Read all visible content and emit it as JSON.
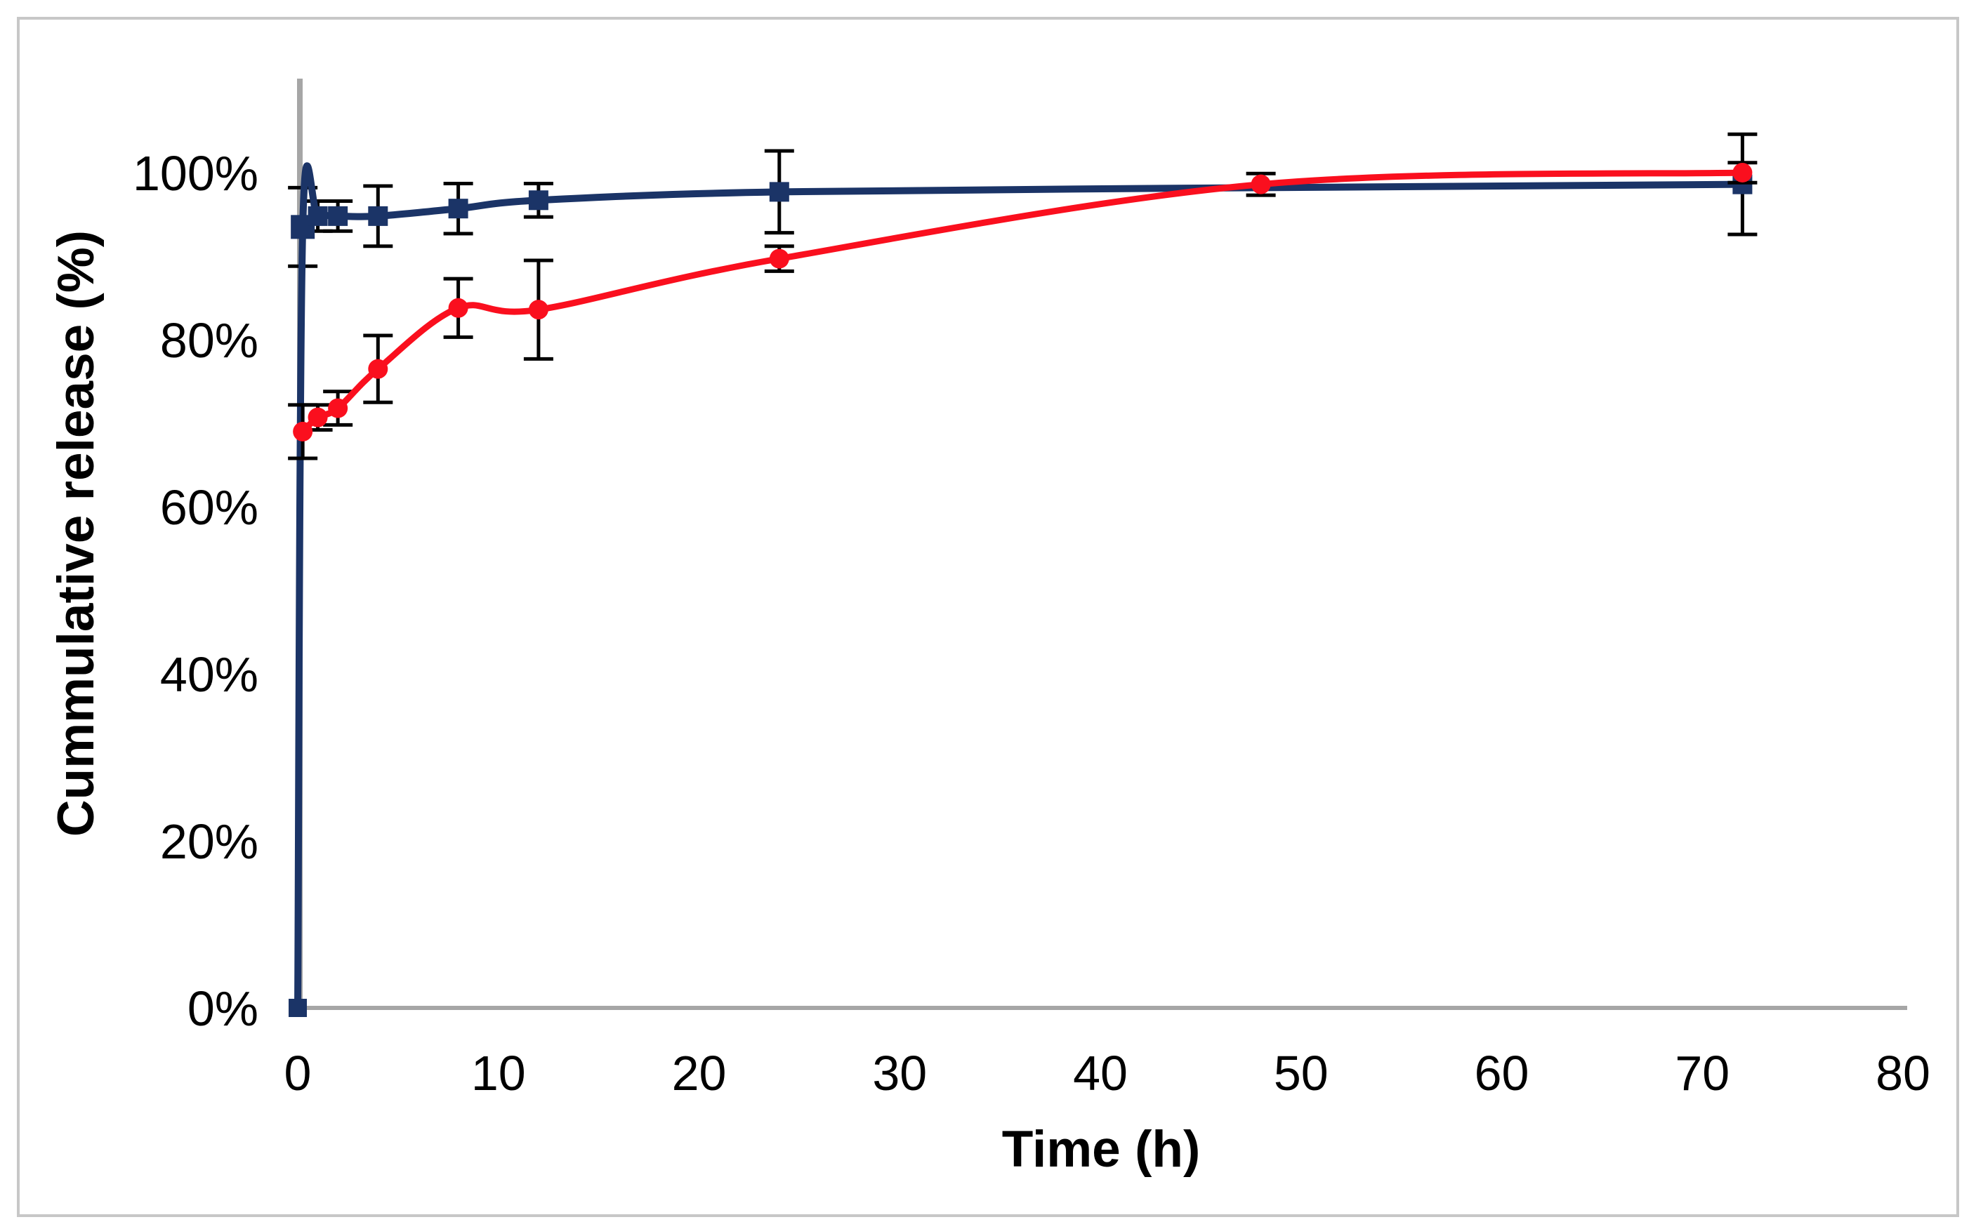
{
  "figure": {
    "background": "#ffffff",
    "border_color": "#c7c7c7"
  },
  "chart_data": {
    "type": "line",
    "title": "",
    "xlabel": "Time (h)",
    "ylabel": "Cummulative release (%)",
    "xlim": [
      0,
      80
    ],
    "ylim": [
      0,
      100
    ],
    "x_ticks": [
      0,
      10,
      20,
      30,
      40,
      50,
      60,
      70,
      80
    ],
    "x_tick_labels": [
      "0",
      "10",
      "20",
      "30",
      "40",
      "50",
      "60",
      "70",
      "80"
    ],
    "y_ticks": [
      0,
      20,
      40,
      60,
      80,
      100
    ],
    "y_tick_labels": [
      "0%",
      "20%",
      "40%",
      "60%",
      "80%",
      "100%"
    ],
    "grid": false,
    "legend_position": "none",
    "axis_color": "#a6a6a6",
    "error_bar_color": "#000000",
    "series": [
      {
        "name": "blue-squares",
        "marker": "square",
        "color": "#1b3467",
        "line_width": 10,
        "points": [
          {
            "x": 0,
            "y": 0,
            "err": 0,
            "marker": true,
            "size": 26
          },
          {
            "x": 0.25,
            "y": 93.5,
            "err": 4.7,
            "marker": true,
            "size": 34
          },
          {
            "x": 1,
            "y": 94.8,
            "err": 1.8,
            "marker": true,
            "size": 28
          },
          {
            "x": 2,
            "y": 94.8,
            "err": 1.8,
            "marker": true,
            "size": 28
          },
          {
            "x": 4,
            "y": 94.8,
            "err": 3.6,
            "marker": true,
            "size": 28
          },
          {
            "x": 8,
            "y": 95.7,
            "err": 3.0,
            "marker": true,
            "size": 28
          },
          {
            "x": 12,
            "y": 96.7,
            "err": 2.0,
            "marker": true,
            "size": 28
          },
          {
            "x": 24,
            "y": 97.7,
            "err": 4.9,
            "marker": true,
            "size": 28
          },
          {
            "x": 48,
            "y": 98.2,
            "err": 0,
            "marker": false,
            "size": 28
          },
          {
            "x": 72,
            "y": 98.6,
            "err": 6.0,
            "marker": true,
            "size": 28
          }
        ]
      },
      {
        "name": "red-circles",
        "marker": "circle",
        "color": "#fa0f1e",
        "line_width": 9,
        "points": [
          {
            "x": 0.25,
            "y": 69.0,
            "err": 3.2,
            "marker": true,
            "size": 28
          },
          {
            "x": 1,
            "y": 70.7,
            "err": 1.5,
            "marker": true,
            "size": 28
          },
          {
            "x": 2,
            "y": 71.8,
            "err": 2.0,
            "marker": true,
            "size": 28
          },
          {
            "x": 4,
            "y": 76.5,
            "err": 4.0,
            "marker": true,
            "size": 28
          },
          {
            "x": 8,
            "y": 83.8,
            "err": 3.5,
            "marker": true,
            "size": 28
          },
          {
            "x": 12,
            "y": 83.6,
            "err": 5.9,
            "marker": true,
            "size": 28
          },
          {
            "x": 24,
            "y": 89.7,
            "err": 1.5,
            "marker": true,
            "size": 28
          },
          {
            "x": 48,
            "y": 98.6,
            "err": 1.3,
            "marker": true,
            "size": 28
          },
          {
            "x": 72,
            "y": 100.0,
            "err": 1.2,
            "marker": true,
            "size": 28
          }
        ]
      }
    ]
  }
}
